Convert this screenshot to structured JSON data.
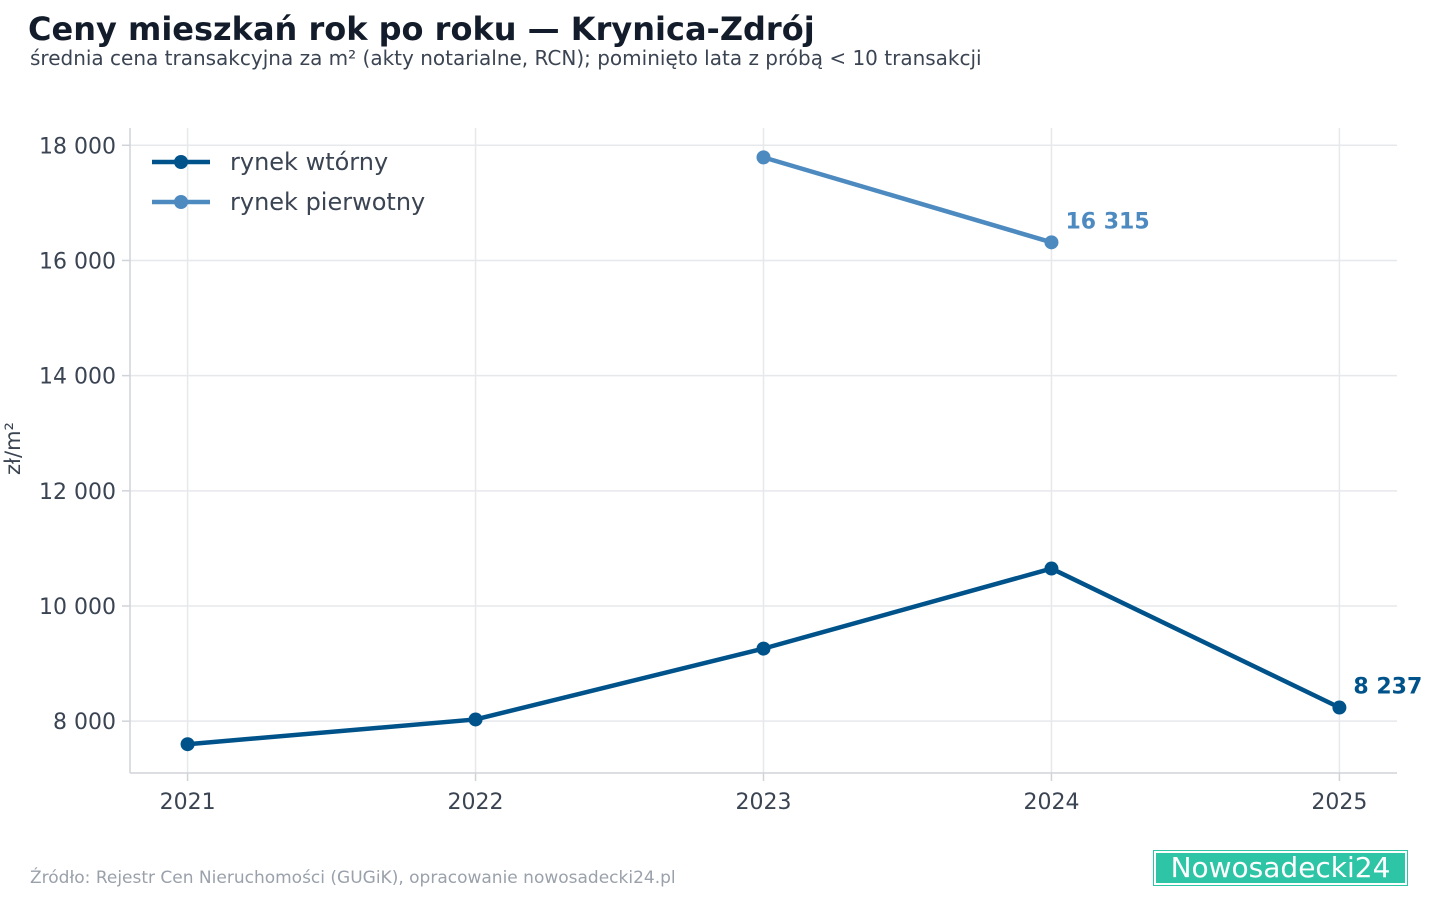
{
  "title": "Ceny mieszkań rok po roku — Krynica-Zdrój",
  "subtitle": "średnia cena transakcyjna za m² (akty notarialne, RCN); pominięto lata z próbą < 10 transakcji",
  "source": "Źródło: Rejestr Cen Nieruchomości (GUGiK), opracowanie nowosadecki24.pl",
  "logo_text": "Nowosadecki24",
  "colors": {
    "secondary": "#00538a",
    "primary": "#4d8ac0",
    "grid": "#e6e8eb",
    "axis_text": "#3b4452",
    "logo": "#2ec4a6"
  },
  "chart_data": {
    "type": "line",
    "title": "Ceny mieszkań rok po roku — Krynica-Zdrój",
    "subtitle": "średnia cena transakcyjna za m² (akty notarialne, RCN); pominięto lata z próbą < 10 transakcji",
    "xlabel": "",
    "ylabel": "zł/m²",
    "x": [
      2021,
      2022,
      2023,
      2024,
      2025
    ],
    "x_tick_labels": [
      "2021",
      "2022",
      "2023",
      "2024",
      "2025"
    ],
    "y_ticks": [
      8000,
      10000,
      12000,
      14000,
      16000,
      18000
    ],
    "y_tick_labels": [
      "8 000",
      "10 000",
      "12 000",
      "14 000",
      "16 000",
      "18 000"
    ],
    "xlim": [
      2020.8,
      2025.2
    ],
    "ylim": [
      7100,
      18300
    ],
    "grid": true,
    "legend": "top-left",
    "series": [
      {
        "name": "rynek wtórny",
        "color": "#00538a",
        "x": [
          2021,
          2022,
          2023,
          2024,
          2025
        ],
        "values": [
          7600,
          8030,
          9260,
          10650,
          8237
        ],
        "end_label": "8 237"
      },
      {
        "name": "rynek pierwotny",
        "color": "#4d8ac0",
        "x": [
          2023,
          2024
        ],
        "values": [
          17790,
          16315
        ],
        "end_label": "16 315"
      }
    ]
  }
}
